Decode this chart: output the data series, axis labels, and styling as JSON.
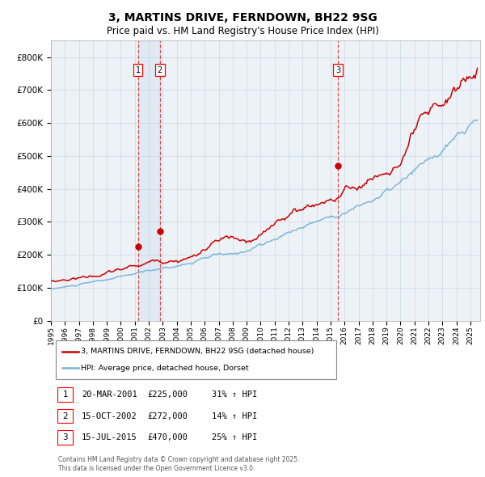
{
  "title": "3, MARTINS DRIVE, FERNDOWN, BH22 9SG",
  "subtitle": "Price paid vs. HM Land Registry's House Price Index (HPI)",
  "title_fontsize": 10,
  "subtitle_fontsize": 8.5,
  "ylabel_ticks": [
    "£0",
    "£100K",
    "£200K",
    "£300K",
    "£400K",
    "£500K",
    "£600K",
    "£700K",
    "£800K"
  ],
  "ytick_vals": [
    0,
    100000,
    200000,
    300000,
    400000,
    500000,
    600000,
    700000,
    800000
  ],
  "ylim": [
    0,
    850000
  ],
  "xlim_start": 1995.0,
  "xlim_end": 2025.7,
  "hpi_color": "#7ab3d9",
  "price_color": "#cc0000",
  "grid_color": "#c8d8e8",
  "bg_color": "#edf2f7",
  "sale_dates": [
    2001.22,
    2002.79,
    2015.54
  ],
  "sale_prices": [
    225000,
    272000,
    470000
  ],
  "sale_labels": [
    "1",
    "2",
    "3"
  ],
  "vspan_start": 2001.22,
  "vspan_end": 2002.79,
  "legend_line1": "3, MARTINS DRIVE, FERNDOWN, BH22 9SG (detached house)",
  "legend_line2": "HPI: Average price, detached house, Dorset",
  "table_data": [
    [
      "1",
      "20-MAR-2001",
      "£225,000",
      "31% ↑ HPI"
    ],
    [
      "2",
      "15-OCT-2002",
      "£272,000",
      "14% ↑ HPI"
    ],
    [
      "3",
      "15-JUL-2015",
      "£470,000",
      "25% ↑ HPI"
    ]
  ],
  "footnote": "Contains HM Land Registry data © Crown copyright and database right 2025.\nThis data is licensed under the Open Government Licence v3.0."
}
